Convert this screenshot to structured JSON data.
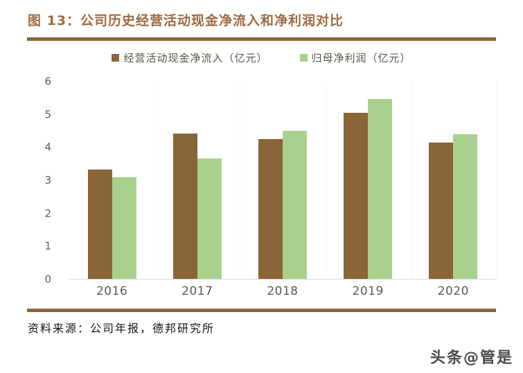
{
  "header": {
    "title": "图 13：公司历史经营活动现金净流入和净利润对比"
  },
  "chart_data": {
    "type": "bar",
    "title": "公司历史经营活动现金净流入和净利润对比",
    "categories": [
      "2016",
      "2017",
      "2018",
      "2019",
      "2020"
    ],
    "series": [
      {
        "name": "经营活动现金净流入（亿元）",
        "color": "#8A6537",
        "values": [
          3.33,
          4.43,
          4.25,
          5.05,
          4.15
        ]
      },
      {
        "name": "归母净利润（亿元）",
        "color": "#A9D18E",
        "values": [
          3.1,
          3.66,
          4.5,
          5.47,
          4.4
        ]
      }
    ],
    "xlabel": "",
    "ylabel": "",
    "ylim": [
      0,
      6
    ],
    "yticks": [
      0,
      1,
      2,
      3,
      4,
      5,
      6
    ],
    "grid": "none",
    "legend_position": "top-center"
  },
  "footer": {
    "source": "资料来源：公司年报，德邦研究所",
    "watermark": "头条@管是"
  },
  "colors": {
    "title_brown": "#9C6A42",
    "rule_brown": "#8E6538",
    "bar_brown": "#8A6537",
    "bar_green": "#A9D18E",
    "axis_text": "#595959",
    "baseline": "#D9D9D9"
  }
}
